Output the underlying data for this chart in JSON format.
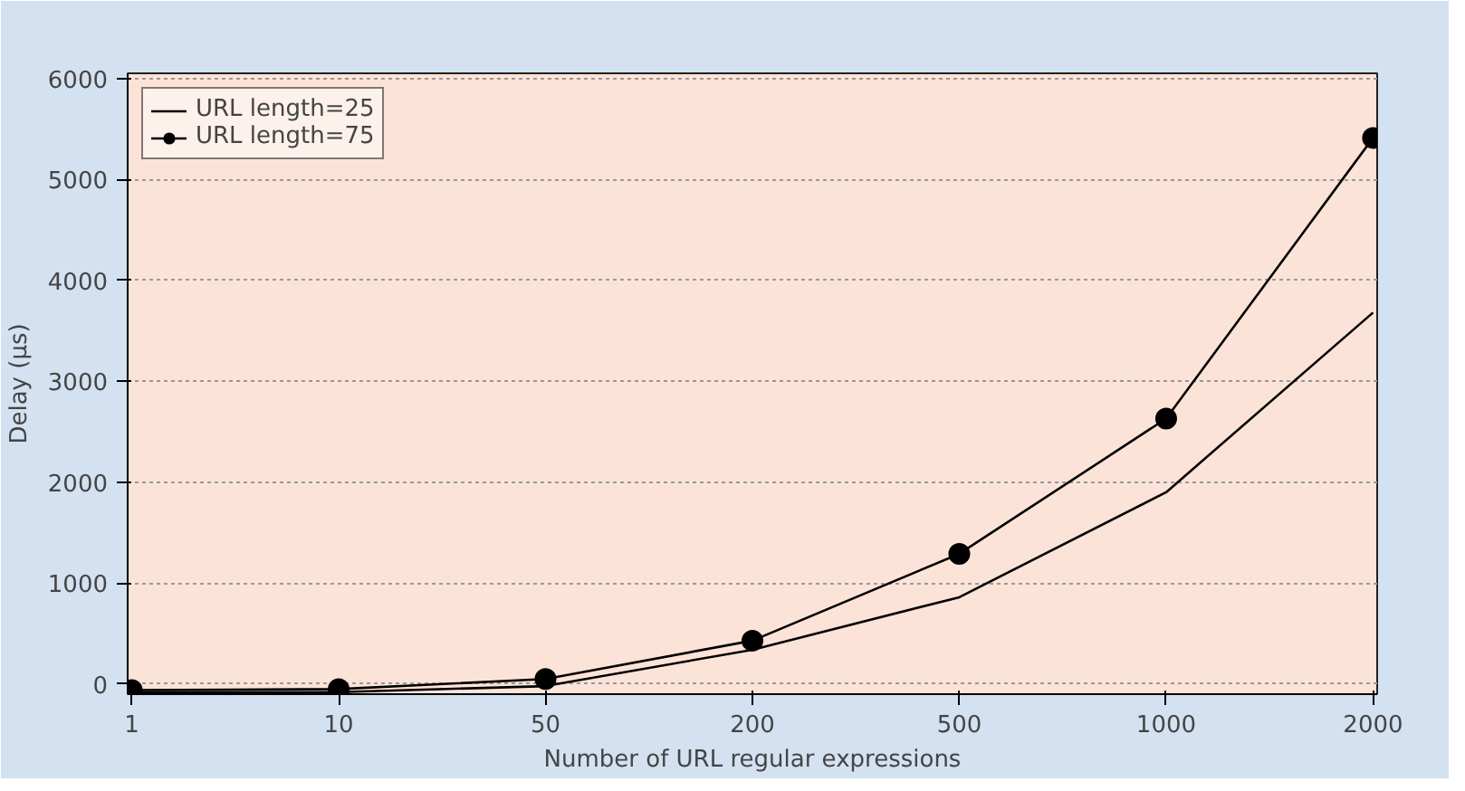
{
  "chart_data": {
    "type": "line",
    "xlabel": "Number of URL regular expressions",
    "ylabel": "Delay (µs)",
    "categories": [
      "1",
      "10",
      "50",
      "200",
      "500",
      "1000",
      "2000"
    ],
    "ylim": [
      -100,
      6050
    ],
    "yticks": [
      0,
      1000,
      2000,
      3000,
      4000,
      5000,
      6000
    ],
    "grid": "y",
    "legend": "top left",
    "series": [
      {
        "name": "URL length=25",
        "color": "#000000",
        "marker": "none",
        "values": [
          -80,
          -80,
          -20,
          340,
          860,
          1900,
          3680
        ]
      },
      {
        "name": "URL length=75",
        "color": "#000000",
        "marker": "circle",
        "values": [
          -60,
          -50,
          50,
          430,
          1290,
          2630,
          5410
        ]
      }
    ]
  }
}
